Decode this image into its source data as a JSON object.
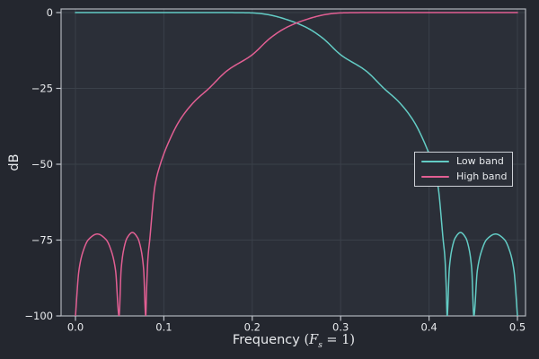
{
  "figure": {
    "background": "#24272f",
    "axes_background": "#2b2f38",
    "grid_color": "#3a4049",
    "frame_color": "#bfc3ca",
    "text_color": "#e8eaed"
  },
  "chart_data": {
    "type": "line",
    "title": "",
    "xlabel_prefix": "Frequency ",
    "xlabel_math_open": "(",
    "xlabel_math_var": "F",
    "xlabel_math_sub": "s",
    "xlabel_math_close": " = 1)",
    "ylabel": "dB",
    "xlim": [
      -0.01626,
      0.50915
    ],
    "ylim": [
      -100,
      1.183
    ],
    "grid": true,
    "legend_position": "center-right",
    "x_ticks": [
      {
        "v": 0.0,
        "label": "0.0"
      },
      {
        "v": 0.1,
        "label": "0.1"
      },
      {
        "v": 0.2,
        "label": "0.2"
      },
      {
        "v": 0.3,
        "label": "0.3"
      },
      {
        "v": 0.4,
        "label": "0.4"
      },
      {
        "v": 0.5,
        "label": "0.5"
      }
    ],
    "y_ticks": [
      {
        "v": 0,
        "label": "0"
      },
      {
        "v": -25,
        "label": "−25"
      },
      {
        "v": -50,
        "label": "−50"
      },
      {
        "v": -75,
        "label": "−75"
      },
      {
        "v": -100,
        "label": "−100"
      }
    ],
    "legend": {
      "entries": [
        {
          "label": "Low band",
          "color": "#63ccc5"
        },
        {
          "label": "High band",
          "color": "#e25f93"
        }
      ]
    },
    "series": [
      {
        "name": "Low band",
        "color": "#63ccc5",
        "points": [
          [
            0.0,
            0
          ],
          [
            0.05,
            0
          ],
          [
            0.1,
            0
          ],
          [
            0.15,
            0
          ],
          [
            0.18,
            -0.02
          ],
          [
            0.2,
            -0.12
          ],
          [
            0.21,
            -0.35
          ],
          [
            0.22,
            -0.8
          ],
          [
            0.23,
            -1.5
          ],
          [
            0.24,
            -2.4
          ],
          [
            0.253,
            -3.8
          ],
          [
            0.265,
            -5.5
          ],
          [
            0.28,
            -8.5
          ],
          [
            0.3,
            -13.9
          ],
          [
            0.329,
            -19.3
          ],
          [
            0.349,
            -25
          ],
          [
            0.366,
            -29.5
          ],
          [
            0.382,
            -35.5
          ],
          [
            0.395,
            -43
          ],
          [
            0.404,
            -50
          ],
          [
            0.41,
            -57
          ],
          [
            0.416,
            -75
          ],
          [
            0.418,
            -81
          ],
          [
            0.4195,
            -91
          ],
          [
            0.4205,
            -100
          ],
          [
            0.4229,
            -84.6
          ],
          [
            0.4256,
            -78.4
          ],
          [
            0.4296,
            -74.3
          ],
          [
            0.4356,
            -72.5
          ],
          [
            0.4416,
            -74.3
          ],
          [
            0.4456,
            -78.4
          ],
          [
            0.4483,
            -84.6
          ],
          [
            0.4507,
            -100
          ],
          [
            0.4546,
            -85.1
          ],
          [
            0.4591,
            -78.9
          ],
          [
            0.4652,
            -74.8
          ],
          [
            0.4753,
            -73
          ],
          [
            0.4852,
            -74.8
          ],
          [
            0.4916,
            -78.9
          ],
          [
            0.4961,
            -85.1
          ],
          [
            0.5,
            -100
          ]
        ]
      },
      {
        "name": "High band",
        "color": "#e25f93",
        "points": [
          [
            0.0,
            -100
          ],
          [
            0.0039,
            -85.1
          ],
          [
            0.0084,
            -78.9
          ],
          [
            0.0148,
            -74.8
          ],
          [
            0.0247,
            -73
          ],
          [
            0.0345,
            -74.8
          ],
          [
            0.0409,
            -78.9
          ],
          [
            0.0454,
            -85.1
          ],
          [
            0.0493,
            -100
          ],
          [
            0.0517,
            -84.6
          ],
          [
            0.0544,
            -78.4
          ],
          [
            0.0584,
            -74.3
          ],
          [
            0.0644,
            -72.5
          ],
          [
            0.0704,
            -74.3
          ],
          [
            0.0744,
            -78.4
          ],
          [
            0.0771,
            -84.6
          ],
          [
            0.0795,
            -100
          ],
          [
            0.0805,
            -91
          ],
          [
            0.082,
            -81
          ],
          [
            0.084,
            -75
          ],
          [
            0.09,
            -57
          ],
          [
            0.096,
            -50
          ],
          [
            0.105,
            -43
          ],
          [
            0.118,
            -35.5
          ],
          [
            0.134,
            -29.5
          ],
          [
            0.151,
            -25
          ],
          [
            0.171,
            -19.3
          ],
          [
            0.2,
            -13.9
          ],
          [
            0.22,
            -8.5
          ],
          [
            0.235,
            -5.5
          ],
          [
            0.247,
            -3.8
          ],
          [
            0.26,
            -2.4
          ],
          [
            0.27,
            -1.5
          ],
          [
            0.28,
            -0.8
          ],
          [
            0.29,
            -0.35
          ],
          [
            0.3,
            -0.12
          ],
          [
            0.32,
            -0.02
          ],
          [
            0.35,
            0
          ],
          [
            0.4,
            0
          ],
          [
            0.45,
            0
          ],
          [
            0.5,
            0
          ]
        ]
      }
    ]
  }
}
